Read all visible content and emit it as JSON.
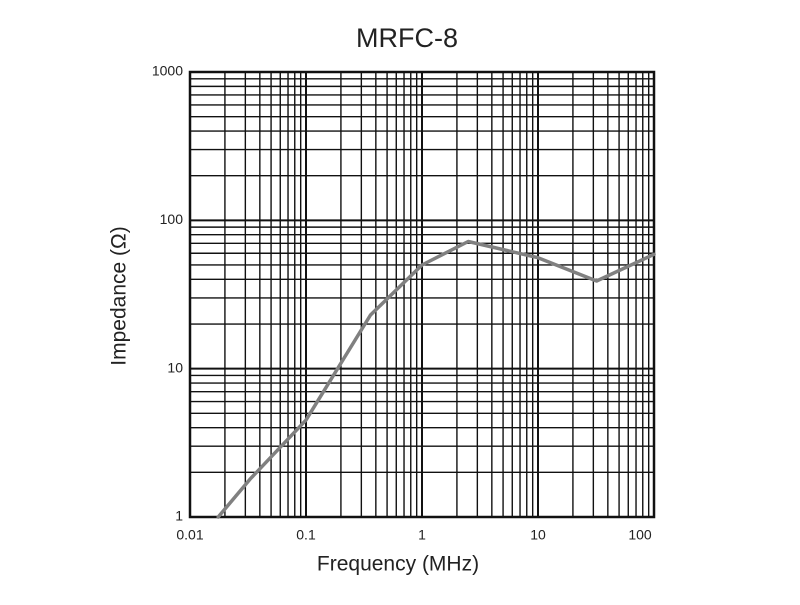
{
  "chart_data": {
    "type": "line",
    "title": "MRFC-8",
    "x_label": "Frequency (MHz)",
    "y_label": "Impedance (Ω)",
    "x_scale": "log",
    "y_scale": "log",
    "grid": true,
    "xlim": [
      0.01,
      100
    ],
    "xticks": [
      0.01,
      0.1,
      1,
      10,
      100
    ],
    "ylim": [
      1,
      1000
    ],
    "yticks": [
      1,
      10,
      100,
      1000
    ],
    "series": [
      {
        "color": "#808080",
        "x": [
          0.0175,
          0.033,
          0.1,
          0.36,
          1,
          2.5,
          10,
          32,
          100
        ],
        "values": [
          1,
          1.8,
          4.5,
          23,
          50,
          72,
          56,
          39,
          59
        ]
      }
    ]
  }
}
